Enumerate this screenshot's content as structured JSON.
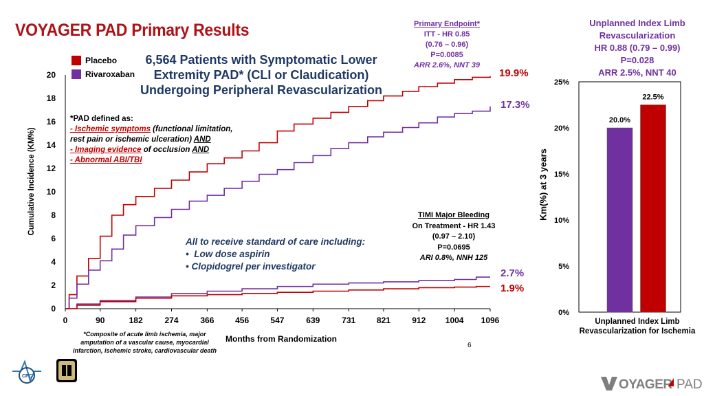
{
  "title": "VOYAGER PAD Primary Results",
  "legend": {
    "placebo_label": "Placebo",
    "rivaroxaban_label": "Rivaroxaban",
    "placebo_color": "#c00000",
    "rivaroxaban_color": "#7030a0"
  },
  "headline": {
    "line1": "6,564 Patients with Symptomatic Lower",
    "line2": "Extremity PAD* (CLI or Claudication)",
    "line3": "Undergoing Peripheral Revascularization"
  },
  "primary_endpoint": {
    "heading": "Primary Endpoint*",
    "itt": "ITT - HR 0.85",
    "ci": "(0.76 – 0.96)",
    "p": "P=0.0085",
    "arr": "ARR 2.6%, NNT 39"
  },
  "pad_definition": {
    "intro": "*PAD defined as:",
    "item1_label": "- Ischemic symptoms",
    "item1_rest": " (functional limitation, rest pain or ischemic ulceration) ",
    "item1_and": "AND",
    "item2_label": "- Imaging evidence",
    "item2_rest": " of occlusion ",
    "item2_and": "AND",
    "item3_label": "- Abnormal ABI/TBI"
  },
  "standard_care": {
    "heading": "All to receive standard of care including:",
    "bullet1": "Low dose aspirin",
    "bullet2": "Clopidogrel per investigator"
  },
  "bleeding": {
    "heading": "TIMI Major Bleeding",
    "line1": "On Treatment - HR 1.43",
    "ci": "(0.97 – 2.10)",
    "p": "P=0.0695",
    "ari": "ARI 0.8%, NNH 125"
  },
  "end_values": {
    "placebo_primary": "19.9%",
    "rivaroxaban_primary": "17.3%",
    "rivaroxaban_bleeding": "2.7%",
    "placebo_bleeding": "1.9%"
  },
  "footnote": "*Composite of acute limb ischemia, major amputation of a vascular cause, myocardial infarction, ischemic stroke, cardiovascular death",
  "page_number": "6",
  "unplanned": {
    "header_line1": "Unplanned Index Limb",
    "header_line2": "Revascularization",
    "hr": "HR 0.88 (0.79 – 0.99)",
    "p": "P=0.028",
    "arr": "ARR 2.5%, NNT 40",
    "caption": "Unplanned Index Limb Revascularization for Ischemia"
  },
  "chart_data": [
    {
      "type": "line",
      "xlabel": "Months from Randomization",
      "ylabel": "Cumulative Incidence (KM%)",
      "x_ticks": [
        "0",
        "90",
        "182",
        "274",
        "366",
        "456",
        "547",
        "639",
        "731",
        "821",
        "912",
        "1004",
        "1096"
      ],
      "y_ticks": [
        "0",
        "2",
        "4",
        "6",
        "8",
        "10",
        "12",
        "14",
        "16",
        "18",
        "20"
      ],
      "xlim": [
        0,
        1096
      ],
      "ylim": [
        0,
        20
      ],
      "grid": false,
      "series": [
        {
          "name": "Placebo",
          "color": "#c00000",
          "x": [
            0,
            10,
            30,
            60,
            90,
            120,
            150,
            182,
            230,
            274,
            320,
            366,
            410,
            456,
            500,
            547,
            590,
            639,
            685,
            731,
            780,
            821,
            870,
            912,
            960,
            1004,
            1050,
            1096
          ],
          "y": [
            0,
            1.2,
            2.8,
            4.3,
            6.2,
            8.0,
            8.9,
            9.6,
            10.3,
            11.0,
            11.7,
            12.4,
            12.9,
            13.5,
            14.2,
            15.2,
            15.8,
            16.3,
            16.8,
            17.3,
            17.8,
            18.2,
            18.6,
            19.0,
            19.3,
            19.6,
            19.8,
            19.9
          ]
        },
        {
          "name": "Rivaroxaban",
          "color": "#7030a0",
          "x": [
            0,
            10,
            30,
            60,
            90,
            120,
            150,
            182,
            230,
            274,
            320,
            366,
            410,
            456,
            500,
            547,
            590,
            639,
            685,
            731,
            780,
            821,
            870,
            912,
            960,
            1004,
            1050,
            1096
          ],
          "y": [
            0,
            0.9,
            2.1,
            3.3,
            4.1,
            5.1,
            6.3,
            7.1,
            7.8,
            8.5,
            9.2,
            9.7,
            10.3,
            10.9,
            11.5,
            11.9,
            12.5,
            13.1,
            13.7,
            14.2,
            14.7,
            15.1,
            15.5,
            15.9,
            16.4,
            16.7,
            16.9,
            17.3
          ]
        },
        {
          "name": "Rivaroxaban (TIMI Major Bleeding)",
          "color": "#7030a0",
          "x": [
            0,
            30,
            90,
            182,
            274,
            366,
            456,
            547,
            639,
            731,
            821,
            912,
            1004,
            1060,
            1096
          ],
          "y": [
            0,
            0.4,
            0.7,
            1.0,
            1.3,
            1.5,
            1.7,
            1.9,
            2.1,
            2.2,
            2.3,
            2.4,
            2.5,
            2.7,
            2.7
          ]
        },
        {
          "name": "Placebo (TIMI Major Bleeding)",
          "color": "#c00000",
          "x": [
            0,
            30,
            90,
            182,
            274,
            366,
            456,
            547,
            639,
            731,
            821,
            912,
            1004,
            1060,
            1096
          ],
          "y": [
            0,
            0.3,
            0.6,
            0.9,
            1.1,
            1.2,
            1.3,
            1.4,
            1.5,
            1.6,
            1.7,
            1.8,
            1.85,
            1.9,
            1.9
          ]
        }
      ]
    },
    {
      "type": "bar",
      "ylabel": "Km(%) at 3 years",
      "y_ticks": [
        "0%",
        "5%",
        "10%",
        "15%",
        "20%",
        "25%"
      ],
      "ylim": [
        0,
        25
      ],
      "grid": false,
      "categories": [
        "Rivaroxaban",
        "Placebo"
      ],
      "values": [
        20.0,
        22.5
      ],
      "value_labels": [
        "20.0%",
        "22.5%"
      ],
      "colors": [
        "#7030a0",
        "#c00000"
      ]
    }
  ]
}
